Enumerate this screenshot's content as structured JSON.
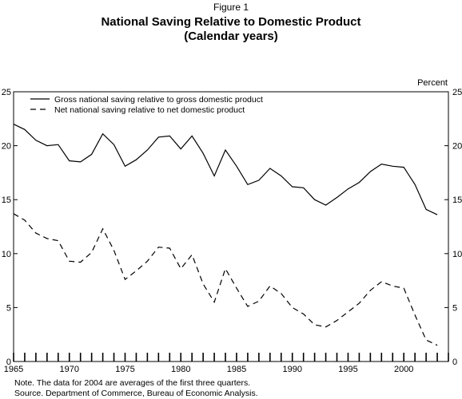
{
  "figure_label": "Figure 1",
  "title_line1": "National Saving Relative to Domestic Product",
  "title_line2": "(Calendar years)",
  "note": "Note. The data for 2004 are averages of the first three quarters.",
  "source": "Source. Department of Commerce, Bureau of Economic Analysis.",
  "chart_data": {
    "type": "line",
    "right_axis_label": "Percent",
    "ylim": [
      0,
      25
    ],
    "y_ticks": [
      0,
      5,
      10,
      15,
      20,
      25
    ],
    "xlim": [
      1965,
      2004
    ],
    "x_ticks": [
      1965,
      1970,
      1975,
      1980,
      1985,
      1990,
      1995,
      2000
    ],
    "grid": false,
    "legend_position": "top-left",
    "series": [
      {
        "name": "Gross national saving relative to gross domestic product",
        "style": "solid",
        "color": "#000000",
        "x": [
          1965,
          1966,
          1967,
          1968,
          1969,
          1970,
          1971,
          1972,
          1973,
          1974,
          1975,
          1976,
          1977,
          1978,
          1979,
          1980,
          1981,
          1982,
          1983,
          1984,
          1985,
          1986,
          1987,
          1988,
          1989,
          1990,
          1991,
          1992,
          1993,
          1994,
          1995,
          1996,
          1997,
          1998,
          1999,
          2000,
          2001,
          2002,
          2003
        ],
        "values": [
          22.0,
          21.5,
          20.5,
          20.0,
          20.1,
          18.6,
          18.5,
          19.2,
          21.1,
          20.1,
          18.1,
          18.7,
          19.6,
          20.8,
          20.9,
          19.7,
          20.9,
          19.3,
          17.2,
          19.6,
          18.1,
          16.4,
          16.8,
          17.9,
          17.2,
          16.2,
          16.1,
          15.0,
          14.5,
          15.2,
          16.0,
          16.6,
          17.6,
          18.3,
          18.1,
          18.0,
          16.4,
          14.1,
          13.6
        ]
      },
      {
        "name": "Net national saving relative to net domestic product",
        "style": "dashed",
        "color": "#000000",
        "x": [
          1965,
          1966,
          1967,
          1968,
          1969,
          1970,
          1971,
          1972,
          1973,
          1974,
          1975,
          1976,
          1977,
          1978,
          1979,
          1980,
          1981,
          1982,
          1983,
          1984,
          1985,
          1986,
          1987,
          1988,
          1989,
          1990,
          1991,
          1992,
          1993,
          1994,
          1995,
          1996,
          1997,
          1998,
          1999,
          2000,
          2001,
          2002,
          2003
        ],
        "values": [
          13.7,
          13.1,
          11.9,
          11.4,
          11.2,
          9.3,
          9.2,
          10.1,
          12.3,
          10.3,
          7.6,
          8.4,
          9.3,
          10.6,
          10.5,
          8.6,
          9.9,
          7.2,
          5.5,
          8.6,
          6.8,
          5.1,
          5.6,
          7.0,
          6.3,
          5.0,
          4.4,
          3.4,
          3.2,
          3.8,
          4.6,
          5.4,
          6.6,
          7.4,
          7.0,
          6.8,
          4.3,
          2.0,
          1.5
        ]
      }
    ]
  }
}
